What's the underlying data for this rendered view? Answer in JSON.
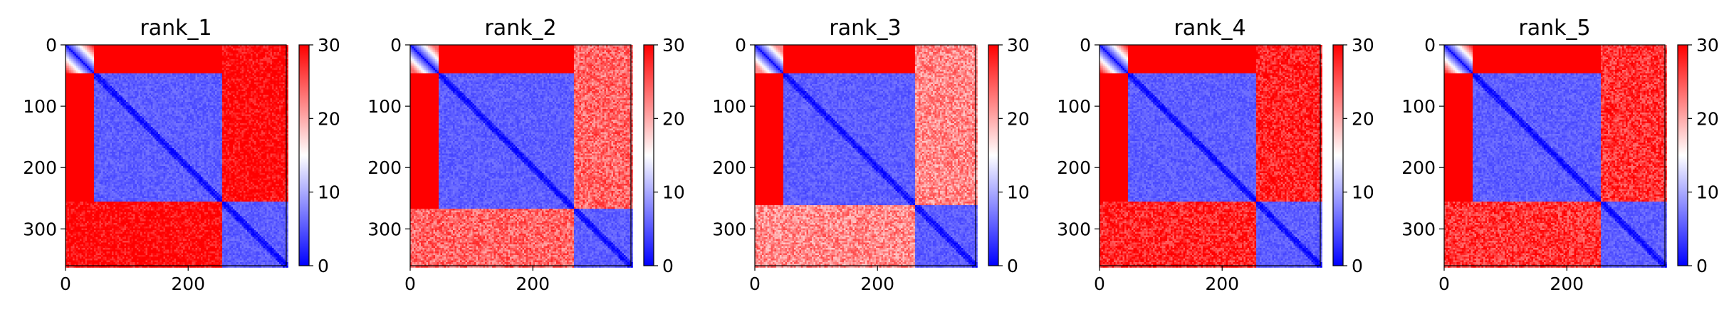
{
  "figure": {
    "colormap": "bwr",
    "colormap_colors": {
      "low": "#0000ff",
      "mid": "#ffffff",
      "high": "#ff0000"
    },
    "background": "#ffffff"
  },
  "chart_data": [
    {
      "type": "heatmap",
      "title": "rank_1",
      "xlim": [
        0,
        360
      ],
      "ylim": [
        360,
        0
      ],
      "xticks": [
        0,
        200
      ],
      "yticks": [
        0,
        100,
        200,
        300
      ],
      "xtick_labels": [
        "0",
        "200"
      ],
      "ytick_labels": [
        "0",
        "100",
        "200",
        "300"
      ],
      "colorbar": {
        "range": [
          0,
          30
        ],
        "ticks": [
          0,
          10,
          20,
          30
        ],
        "tick_labels": [
          "0",
          "10",
          "20",
          "30"
        ]
      },
      "domains": [
        [
          0,
          45
        ],
        [
          45,
          255
        ],
        [
          255,
          360
        ]
      ],
      "between_domain_value": 30,
      "within_domain_value": 4,
      "diagonal_value": 0
    },
    {
      "type": "heatmap",
      "title": "rank_2",
      "xlim": [
        0,
        360
      ],
      "ylim": [
        360,
        0
      ],
      "xticks": [
        0,
        200
      ],
      "yticks": [
        0,
        100,
        200,
        300
      ],
      "xtick_labels": [
        "0",
        "200"
      ],
      "ytick_labels": [
        "0",
        "100",
        "200",
        "300"
      ],
      "colorbar": {
        "range": [
          0,
          30
        ],
        "ticks": [
          0,
          10,
          20,
          30
        ],
        "tick_labels": [
          "0",
          "10",
          "20",
          "30"
        ]
      },
      "domains": [
        [
          0,
          45
        ],
        [
          45,
          265
        ],
        [
          265,
          360
        ]
      ],
      "between_domain_value": 24,
      "within_domain_value": 4,
      "diagonal_value": 0
    },
    {
      "type": "heatmap",
      "title": "rank_3",
      "xlim": [
        0,
        360
      ],
      "ylim": [
        360,
        0
      ],
      "xticks": [
        0,
        200
      ],
      "yticks": [
        0,
        100,
        200,
        300
      ],
      "xtick_labels": [
        "0",
        "200"
      ],
      "ytick_labels": [
        "0",
        "100",
        "200",
        "300"
      ],
      "colorbar": {
        "range": [
          0,
          30
        ],
        "ticks": [
          0,
          10,
          20,
          30
        ],
        "tick_labels": [
          "0",
          "10",
          "20",
          "30"
        ]
      },
      "domains": [
        [
          0,
          45
        ],
        [
          45,
          260
        ],
        [
          260,
          360
        ]
      ],
      "between_domain_value": 22,
      "within_domain_value": 4,
      "diagonal_value": 0
    },
    {
      "type": "heatmap",
      "title": "rank_4",
      "xlim": [
        0,
        360
      ],
      "ylim": [
        360,
        0
      ],
      "xticks": [
        0,
        200
      ],
      "yticks": [
        0,
        100,
        200,
        300
      ],
      "xtick_labels": [
        "0",
        "200"
      ],
      "ytick_labels": [
        "0",
        "100",
        "200",
        "300"
      ],
      "colorbar": {
        "range": [
          0,
          30
        ],
        "ticks": [
          0,
          10,
          20,
          30
        ],
        "tick_labels": [
          "0",
          "10",
          "20",
          "30"
        ]
      },
      "domains": [
        [
          0,
          45
        ],
        [
          45,
          255
        ],
        [
          255,
          360
        ]
      ],
      "between_domain_value": 28,
      "within_domain_value": 4,
      "diagonal_value": 0
    },
    {
      "type": "heatmap",
      "title": "rank_5",
      "xlim": [
        0,
        360
      ],
      "ylim": [
        360,
        0
      ],
      "xticks": [
        0,
        200
      ],
      "yticks": [
        0,
        100,
        200,
        300
      ],
      "xtick_labels": [
        "0",
        "200"
      ],
      "ytick_labels": [
        "0",
        "100",
        "200",
        "300"
      ],
      "colorbar": {
        "range": [
          0,
          30
        ],
        "ticks": [
          0,
          10,
          20,
          30
        ],
        "tick_labels": [
          "0",
          "10",
          "20",
          "30"
        ]
      },
      "domains": [
        [
          0,
          45
        ],
        [
          45,
          255
        ],
        [
          255,
          360
        ]
      ],
      "between_domain_value": 27,
      "within_domain_value": 4,
      "diagonal_value": 0
    }
  ]
}
